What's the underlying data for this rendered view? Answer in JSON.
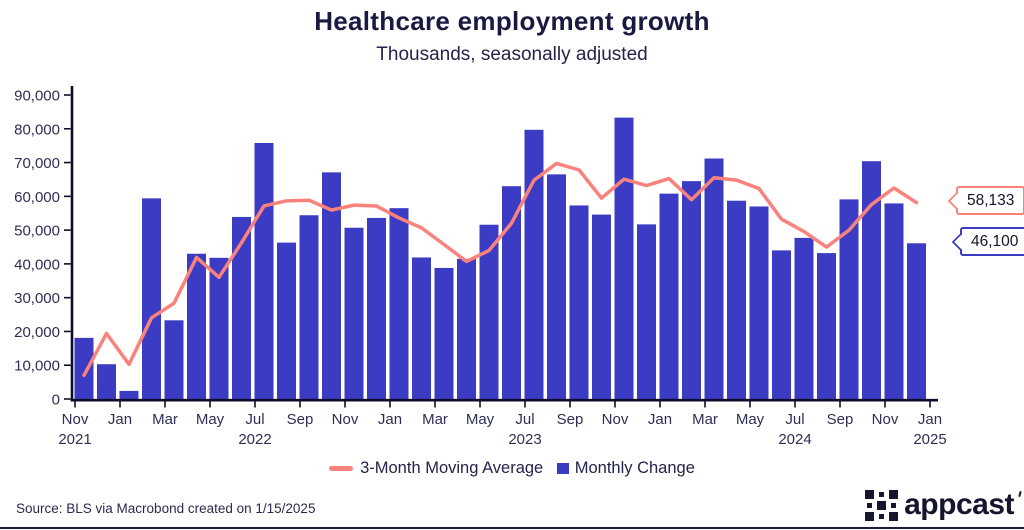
{
  "header": {
    "title": "Healthcare employment growth",
    "subtitle": "Thousands, seasonally adjusted"
  },
  "chart_data": {
    "type": "bar+line",
    "title": "Healthcare employment growth",
    "subtitle": "Thousands, seasonally adjusted",
    "ylim": [
      0,
      90000
    ],
    "ytick_step": 10000,
    "ytick_labels": [
      "0",
      "10,000",
      "20,000",
      "30,000",
      "40,000",
      "50,000",
      "60,000",
      "70,000",
      "80,000",
      "90,000"
    ],
    "grid": false,
    "legend_position": "bottom",
    "categories": [
      "Nov 2021",
      "Dec 2021",
      "Jan 2022",
      "Feb 2022",
      "Mar 2022",
      "Apr 2022",
      "May 2022",
      "Jun 2022",
      "Jul 2022",
      "Aug 2022",
      "Sep 2022",
      "Oct 2022",
      "Nov 2022",
      "Dec 2022",
      "Jan 2023",
      "Feb 2023",
      "Mar 2023",
      "Apr 2023",
      "May 2023",
      "Jun 2023",
      "Jul 2023",
      "Aug 2023",
      "Sep 2023",
      "Oct 2023",
      "Nov 2023",
      "Dec 2023",
      "Jan 2024",
      "Feb 2024",
      "Mar 2024",
      "Apr 2024",
      "May 2024",
      "Jun 2024",
      "Jul 2024",
      "Aug 2024",
      "Sep 2024",
      "Oct 2024",
      "Nov 2024",
      "Dec 2024"
    ],
    "series": [
      {
        "name": "Monthly Change",
        "type": "bar",
        "color": "#3b3cc3",
        "values": [
          18100,
          10300,
          2400,
          59400,
          23300,
          43000,
          41800,
          53900,
          75800,
          46300,
          54400,
          67100,
          50700,
          53600,
          56500,
          41900,
          38800,
          41500,
          51600,
          63000,
          79700,
          66500,
          57300,
          54600,
          83300,
          51700,
          60800,
          64500,
          71200,
          58700,
          57000,
          44000,
          47700,
          43200,
          59100,
          70400,
          57900,
          46100
        ]
      },
      {
        "name": "3-Month Moving Average",
        "type": "line",
        "color": "#f9837c",
        "values": [
          7000,
          19400,
          10267,
          24033,
          28367,
          41900,
          36033,
          46233,
          57167,
          58667,
          58833,
          55933,
          57400,
          57133,
          53600,
          50667,
          45733,
          40733,
          43967,
          52033,
          64767,
          69733,
          67833,
          59467,
          65067,
          63200,
          65267,
          59000,
          65500,
          64800,
          62300,
          53233,
          49567,
          44967,
          50000,
          57567,
          62467,
          58133
        ]
      }
    ],
    "xticks": [
      {
        "month": "Nov",
        "year": "2021"
      },
      {
        "month": "Jan"
      },
      {
        "month": "Mar"
      },
      {
        "month": "May"
      },
      {
        "month": "Jul",
        "year": "2022"
      },
      {
        "month": "Sep"
      },
      {
        "month": "Nov"
      },
      {
        "month": "Jan"
      },
      {
        "month": "Mar"
      },
      {
        "month": "May"
      },
      {
        "month": "Jul",
        "year": "2023"
      },
      {
        "month": "Sep"
      },
      {
        "month": "Nov"
      },
      {
        "month": "Jan"
      },
      {
        "month": "Mar"
      },
      {
        "month": "May"
      },
      {
        "month": "Jul",
        "year": "2024"
      },
      {
        "month": "Sep"
      },
      {
        "month": "Nov"
      },
      {
        "month": "Jan",
        "year": "2025"
      }
    ],
    "last_values": {
      "moving_average": "58,133",
      "monthly_change": "46,100"
    }
  },
  "callouts": [
    {
      "label": "58,133",
      "series": "3-Month Moving Average",
      "color": "#f9837c"
    },
    {
      "label": "46,100",
      "series": "Monthly Change",
      "color": "#3b3cc3"
    }
  ],
  "legend": [
    {
      "label": "3-Month Moving Average",
      "swatch": "line",
      "color": "#f9837c"
    },
    {
      "label": "Monthly Change",
      "swatch": "square",
      "color": "#3b3cc3"
    }
  ],
  "footer": {
    "source": "Source: BLS via Macrobond created on 1/15/2025",
    "brand": "appcast"
  },
  "colors": {
    "bar": "#3b3cc3",
    "line": "#f9837c",
    "axis": "#0d0d2b",
    "text_navy": "#191942",
    "bottom_rule": "#1c1c3c"
  }
}
